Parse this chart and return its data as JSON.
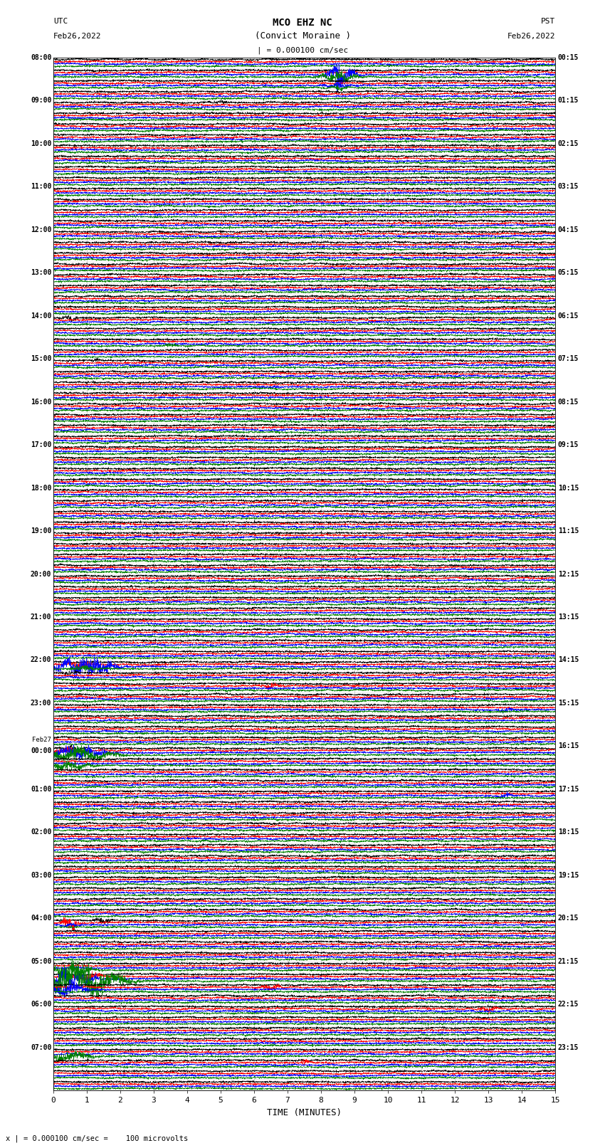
{
  "title_line1": "MCO EHZ NC",
  "title_line2": "(Convict Moraine )",
  "scale_label": "| = 0.000100 cm/sec",
  "left_label_line1": "UTC",
  "left_label_line2": "Feb26,2022",
  "right_label_line1": "PST",
  "right_label_line2": "Feb26,2022",
  "xlabel": "TIME (MINUTES)",
  "bottom_label": "x | = 0.000100 cm/sec =    100 microvolts",
  "utc_times": [
    "08:00",
    "",
    "",
    "",
    "09:00",
    "",
    "",
    "",
    "10:00",
    "",
    "",
    "",
    "11:00",
    "",
    "",
    "",
    "12:00",
    "",
    "",
    "",
    "13:00",
    "",
    "",
    "",
    "14:00",
    "",
    "",
    "",
    "15:00",
    "",
    "",
    "",
    "16:00",
    "",
    "",
    "",
    "17:00",
    "",
    "",
    "",
    "18:00",
    "",
    "",
    "",
    "19:00",
    "",
    "",
    "",
    "20:00",
    "",
    "",
    "",
    "21:00",
    "",
    "",
    "",
    "22:00",
    "",
    "",
    "",
    "23:00",
    "",
    "",
    "",
    "Feb27\n00:00",
    "",
    "",
    "",
    "01:00",
    "",
    "",
    "",
    "02:00",
    "",
    "",
    "",
    "03:00",
    "",
    "",
    "",
    "04:00",
    "",
    "",
    "",
    "05:00",
    "",
    "",
    "",
    "06:00",
    "",
    "",
    "",
    "07:00",
    "",
    "",
    ""
  ],
  "pst_times": [
    "00:15",
    "",
    "",
    "",
    "01:15",
    "",
    "",
    "",
    "02:15",
    "",
    "",
    "",
    "03:15",
    "",
    "",
    "",
    "04:15",
    "",
    "",
    "",
    "05:15",
    "",
    "",
    "",
    "06:15",
    "",
    "",
    "",
    "07:15",
    "",
    "",
    "",
    "08:15",
    "",
    "",
    "",
    "09:15",
    "",
    "",
    "",
    "10:15",
    "",
    "",
    "",
    "11:15",
    "",
    "",
    "",
    "12:15",
    "",
    "",
    "",
    "13:15",
    "",
    "",
    "",
    "14:15",
    "",
    "",
    "",
    "15:15",
    "",
    "",
    "",
    "16:15",
    "",
    "",
    "",
    "17:15",
    "",
    "",
    "",
    "18:15",
    "",
    "",
    "",
    "19:15",
    "",
    "",
    "",
    "20:15",
    "",
    "",
    "",
    "21:15",
    "",
    "",
    "",
    "22:15",
    "",
    "",
    "",
    "23:15",
    "",
    "",
    ""
  ],
  "num_rows": 96,
  "traces_per_row": 4,
  "colors": [
    "black",
    "red",
    "blue",
    "green"
  ],
  "bg_color": "white",
  "grid_color": "#999999",
  "xlim": [
    0,
    15
  ],
  "xticks": [
    0,
    1,
    2,
    3,
    4,
    5,
    6,
    7,
    8,
    9,
    10,
    11,
    12,
    13,
    14,
    15
  ],
  "figsize": [
    8.5,
    16.13
  ],
  "dpi": 100,
  "noise_amplitude": 0.38,
  "event_list": [
    [
      1,
      2,
      8.5,
      12.0,
      0.08
    ],
    [
      1,
      2,
      8.6,
      8.0,
      0.3
    ],
    [
      1,
      3,
      8.5,
      5.0,
      0.4
    ],
    [
      2,
      2,
      8.5,
      3.0,
      0.3
    ],
    [
      2,
      3,
      8.5,
      2.5,
      0.2
    ],
    [
      4,
      0,
      5.0,
      2.0,
      0.15
    ],
    [
      24,
      0,
      0.5,
      3.0,
      0.15
    ],
    [
      26,
      3,
      3.5,
      1.5,
      0.2
    ],
    [
      28,
      0,
      1.3,
      2.0,
      0.1
    ],
    [
      56,
      1,
      0.8,
      5.0,
      0.2
    ],
    [
      56,
      2,
      0.7,
      8.0,
      0.5
    ],
    [
      56,
      2,
      1.3,
      6.0,
      0.5
    ],
    [
      56,
      3,
      0.9,
      3.0,
      0.3
    ],
    [
      57,
      0,
      0.5,
      2.0,
      0.15
    ],
    [
      58,
      1,
      6.5,
      3.0,
      0.2
    ],
    [
      60,
      2,
      13.5,
      2.0,
      0.2
    ],
    [
      64,
      0,
      0.5,
      3.0,
      0.2
    ],
    [
      64,
      1,
      0.5,
      3.5,
      0.3
    ],
    [
      64,
      2,
      0.5,
      5.0,
      0.5
    ],
    [
      64,
      2,
      1.0,
      4.0,
      0.5
    ],
    [
      64,
      3,
      0.7,
      6.0,
      0.8
    ],
    [
      65,
      3,
      0.5,
      4.0,
      0.5
    ],
    [
      68,
      2,
      13.5,
      2.5,
      0.2
    ],
    [
      80,
      0,
      1.5,
      3.0,
      0.2
    ],
    [
      80,
      1,
      0.5,
      8.0,
      0.15
    ],
    [
      80,
      2,
      0.5,
      2.0,
      0.2
    ],
    [
      84,
      3,
      0.5,
      5.0,
      0.5
    ],
    [
      85,
      3,
      0.5,
      12.0,
      0.8
    ],
    [
      85,
      3,
      1.0,
      10.0,
      0.8
    ],
    [
      85,
      2,
      0.5,
      8.0,
      0.5
    ],
    [
      85,
      1,
      1.0,
      4.0,
      0.3
    ],
    [
      86,
      2,
      0.5,
      6.0,
      0.4
    ],
    [
      86,
      1,
      6.5,
      3.0,
      0.25
    ],
    [
      88,
      1,
      13.0,
      3.0,
      0.2
    ],
    [
      92,
      3,
      0.5,
      5.0,
      0.5
    ],
    [
      93,
      1,
      7.5,
      2.5,
      0.1
    ]
  ]
}
